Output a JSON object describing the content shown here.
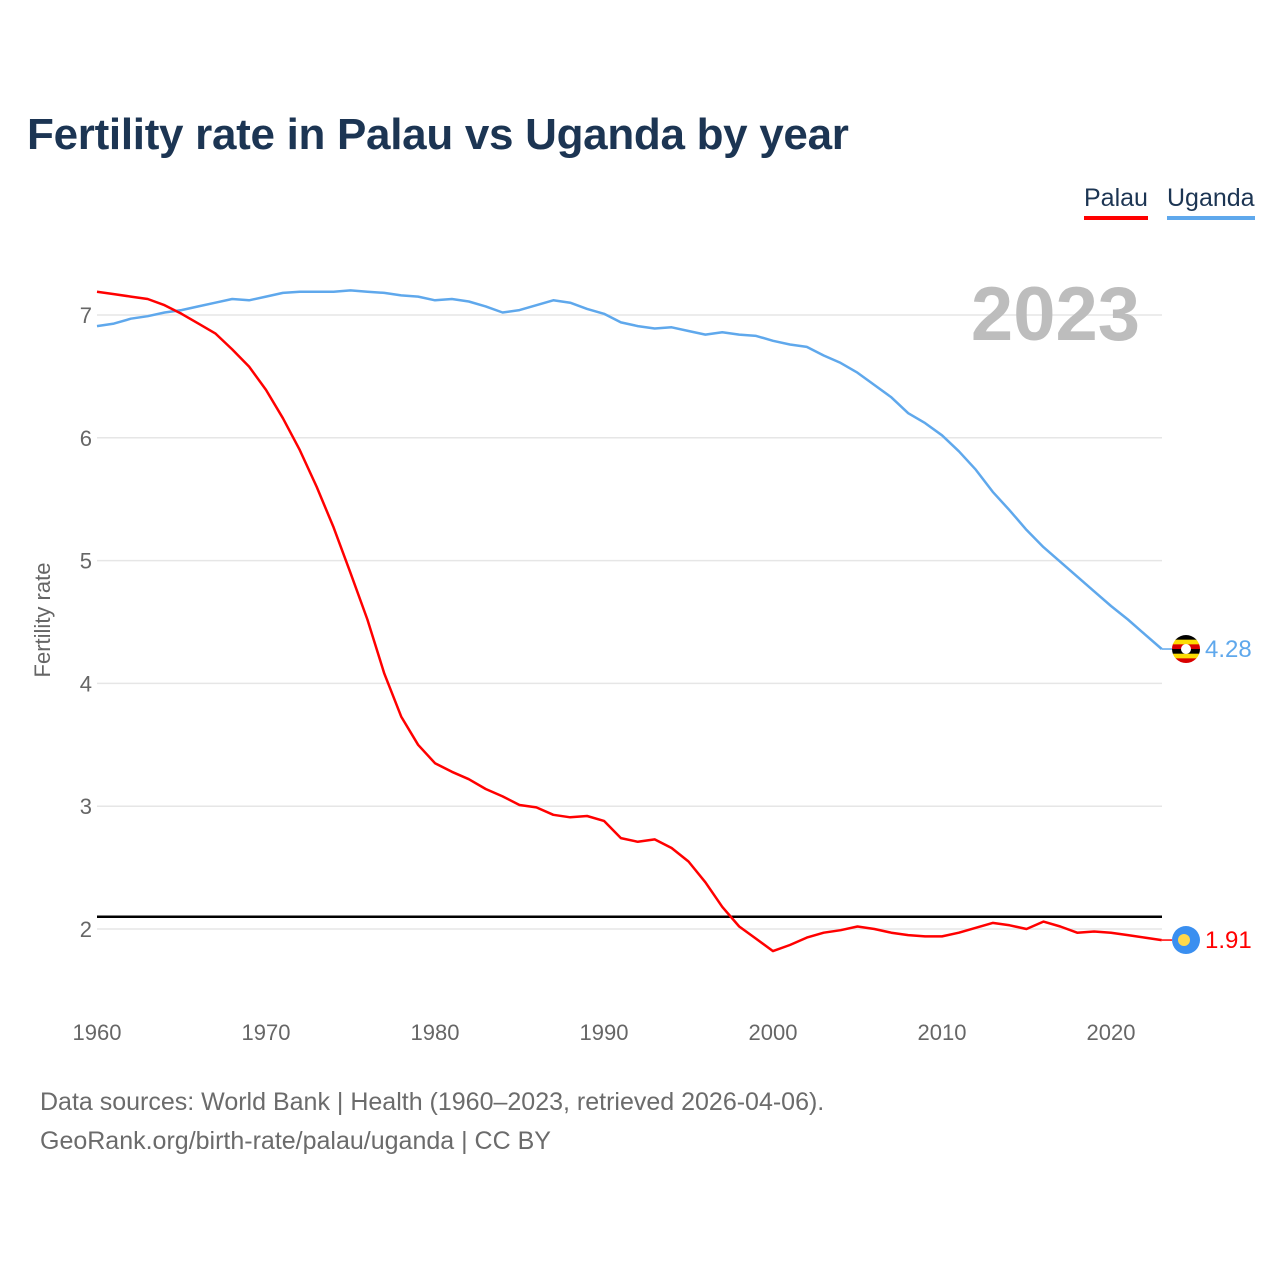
{
  "title": "Fertility rate in Palau vs Uganda by year",
  "legend": [
    {
      "label": "Palau",
      "color": "#ff0000"
    },
    {
      "label": "Uganda",
      "color": "#5fa8ec"
    }
  ],
  "footer": {
    "line1": "Data sources: World Bank | Health (1960–2023, retrieved 2026-04-06).",
    "line2": "GeoRank.org/birth-rate/palau/uganda | CC BY"
  },
  "chart_data": {
    "type": "line",
    "title": "Fertility rate in Palau vs Uganda by year",
    "xlabel": "",
    "ylabel": "Fertility rate",
    "year_watermark": "2023",
    "xlim": [
      1960,
      2023
    ],
    "ylim": [
      1.35,
      7.4
    ],
    "xticks": [
      1960,
      1970,
      1980,
      1990,
      2000,
      2010,
      2020
    ],
    "yticks": [
      2,
      3,
      4,
      5,
      6,
      7
    ],
    "grid": true,
    "legend_position": "top-right",
    "reference_line": {
      "value": 2.1,
      "color": "#000000"
    },
    "x": [
      1960,
      1961,
      1962,
      1963,
      1964,
      1965,
      1966,
      1967,
      1968,
      1969,
      1970,
      1971,
      1972,
      1973,
      1974,
      1975,
      1976,
      1977,
      1978,
      1979,
      1980,
      1981,
      1982,
      1983,
      1984,
      1985,
      1986,
      1987,
      1988,
      1989,
      1990,
      1991,
      1992,
      1993,
      1994,
      1995,
      1996,
      1997,
      1998,
      1999,
      2000,
      2001,
      2002,
      2003,
      2004,
      2005,
      2006,
      2007,
      2008,
      2009,
      2010,
      2011,
      2012,
      2013,
      2014,
      2015,
      2016,
      2017,
      2018,
      2019,
      2020,
      2021,
      2022,
      2023
    ],
    "series": [
      {
        "name": "Palau",
        "color": "#ff0000",
        "end_label": "1.91",
        "flag": "palau",
        "values": [
          7.19,
          7.17,
          7.15,
          7.13,
          7.08,
          7.01,
          6.93,
          6.85,
          6.72,
          6.58,
          6.39,
          6.16,
          5.9,
          5.6,
          5.27,
          4.9,
          4.52,
          4.08,
          3.73,
          3.5,
          3.35,
          3.28,
          3.22,
          3.14,
          3.08,
          3.01,
          2.99,
          2.93,
          2.91,
          2.92,
          2.88,
          2.74,
          2.71,
          2.73,
          2.66,
          2.55,
          2.38,
          2.18,
          2.02,
          1.92,
          1.82,
          1.87,
          1.93,
          1.97,
          1.99,
          2.02,
          2.0,
          1.97,
          1.95,
          1.94,
          1.94,
          1.97,
          2.01,
          2.05,
          2.03,
          2.0,
          2.06,
          2.02,
          1.97,
          1.98,
          1.97,
          1.95,
          1.93,
          1.91
        ]
      },
      {
        "name": "Uganda",
        "color": "#5fa8ec",
        "end_label": "4.28",
        "flag": "uganda",
        "values": [
          6.91,
          6.93,
          6.97,
          6.99,
          7.02,
          7.04,
          7.07,
          7.1,
          7.13,
          7.12,
          7.15,
          7.18,
          7.19,
          7.19,
          7.19,
          7.2,
          7.19,
          7.18,
          7.16,
          7.15,
          7.12,
          7.13,
          7.11,
          7.07,
          7.02,
          7.04,
          7.08,
          7.12,
          7.1,
          7.05,
          7.01,
          6.94,
          6.91,
          6.89,
          6.9,
          6.87,
          6.84,
          6.86,
          6.84,
          6.83,
          6.79,
          6.76,
          6.74,
          6.67,
          6.61,
          6.53,
          6.43,
          6.33,
          6.2,
          6.12,
          6.02,
          5.89,
          5.74,
          5.56,
          5.41,
          5.25,
          5.11,
          4.99,
          4.87,
          4.75,
          4.63,
          4.52,
          4.4,
          4.28
        ]
      }
    ]
  }
}
